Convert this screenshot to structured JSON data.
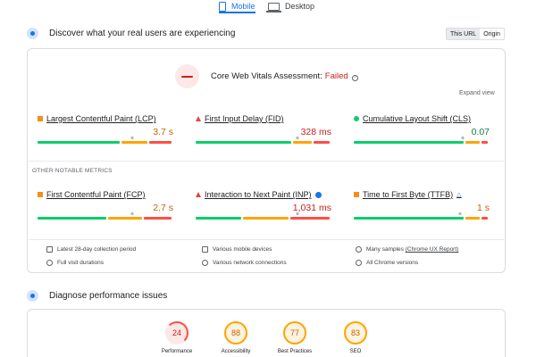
{
  "tabs": {
    "mobile": "Mobile",
    "desktop": "Desktop"
  },
  "discover": {
    "title": "Discover what your real users are experiencing",
    "toggle": {
      "this_url": "This URL",
      "origin": "Origin"
    }
  },
  "assessment": {
    "label": "Core Web Vitals Assessment:",
    "status": "Failed",
    "expand": "Expand view"
  },
  "colors": {
    "good": "#0cce6b",
    "needs_improvement": "#ffa400",
    "poor": "#ff4e42",
    "accent": "#1a73e8"
  },
  "core_metrics": [
    {
      "name": "Largest Contentful Paint (LCP)",
      "value": "3.7 s",
      "rating": "needs-improvement",
      "good_pct": 62,
      "ni_pct": 20,
      "poor_pct": 18,
      "marker_pct": 70
    },
    {
      "name": "First Input Delay (FID)",
      "value": "328 ms",
      "rating": "poor",
      "good_pct": 72,
      "ni_pct": 15,
      "poor_pct": 13,
      "marker_pct": 75
    },
    {
      "name": "Cumulative Layout Shift (CLS)",
      "value": "0.07",
      "rating": "good",
      "good_pct": 82,
      "ni_pct": 12,
      "poor_pct": 6,
      "marker_pct": 80
    }
  ],
  "other_label": "OTHER NOTABLE METRICS",
  "other_metrics": [
    {
      "name": "First Contentful Paint (FCP)",
      "value": "2.7 s",
      "rating": "needs-improvement",
      "good_pct": 52,
      "ni_pct": 26,
      "poor_pct": 22,
      "marker_pct": 70
    },
    {
      "name": "Interaction to Next Paint (INP)",
      "value": "1,031 ms",
      "rating": "poor",
      "good_pct": 35,
      "ni_pct": 35,
      "poor_pct": 30,
      "marker_pct": 75
    },
    {
      "name": "Time to First Byte (TTFB)",
      "value": "1 s",
      "rating": "needs-improvement",
      "good_pct": 82,
      "ni_pct": 12,
      "poor_pct": 6,
      "marker_pct": 78
    }
  ],
  "footer": {
    "period": "Latest 28-day collection period",
    "durations": "Full visit durations",
    "devices": "Various mobile devices",
    "connections": "Various network connections",
    "samples": "Many samples",
    "report_link": "(Chrome UX Report)",
    "versions": "All Chrome versions"
  },
  "diagnose": {
    "title": "Diagnose performance issues",
    "scores": [
      {
        "label": "Performance",
        "score": "24",
        "rating": "poor"
      },
      {
        "label": "Accessibility",
        "score": "88",
        "rating": "average"
      },
      {
        "label": "Best Practices",
        "score": "77",
        "rating": "average"
      },
      {
        "label": "SEO",
        "score": "83",
        "rating": "average"
      }
    ]
  }
}
